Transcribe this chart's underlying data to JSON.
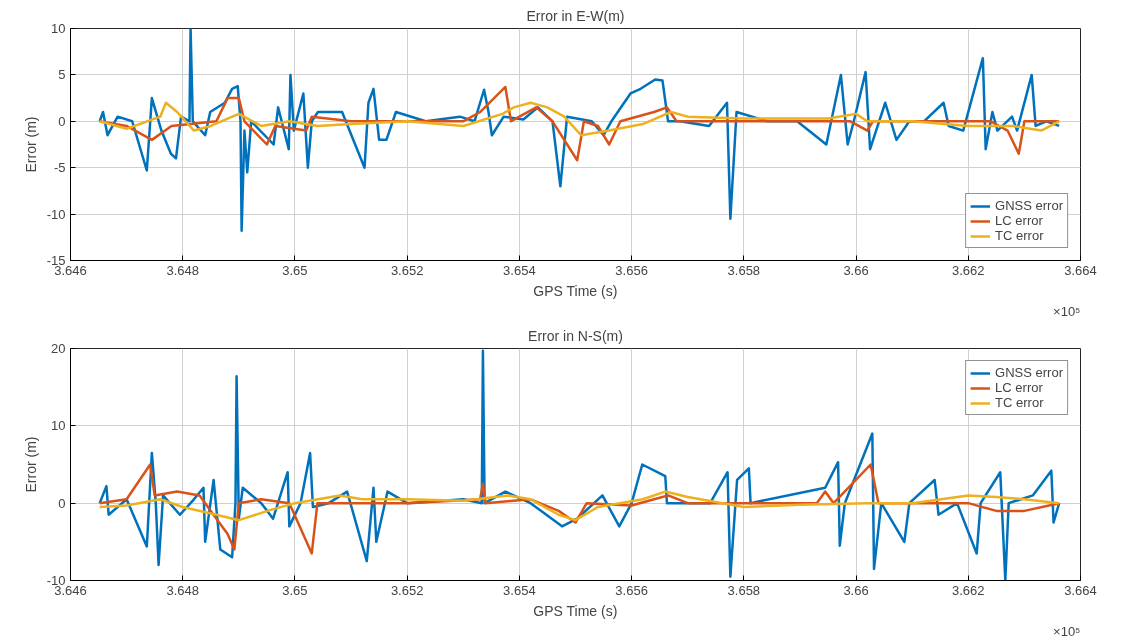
{
  "chart_data": [
    {
      "type": "line",
      "title": "Error in E-W(m)",
      "xlabel": "GPS Time (s)",
      "ylabel": "Error (m)",
      "annotations": [
        "×10⁵"
      ],
      "xlim": [
        3.646,
        3.664
      ],
      "xticks": [
        3.646,
        3.648,
        3.65,
        3.652,
        3.654,
        3.656,
        3.658,
        3.66,
        3.662,
        3.664
      ],
      "ylim": [
        -15,
        10
      ],
      "yticks": [
        -15,
        -10,
        -5,
        0,
        5,
        10
      ],
      "grid": true,
      "legend": "bottom right",
      "series": [
        {
          "name": "GNSS error",
          "color": "#0072bd",
          "x": [
            3.64652,
            3.64658,
            3.64666,
            3.64684,
            3.6471,
            3.64736,
            3.64745,
            3.64762,
            3.64779,
            3.64788,
            3.64797,
            3.64812,
            3.64814,
            3.64818,
            3.6484,
            3.64849,
            3.64875,
            3.64888,
            3.64898,
            3.64903,
            3.64905,
            3.6491,
            3.64915,
            3.64922,
            3.64962,
            3.6497,
            3.64989,
            3.64992,
            3.64998,
            3.65015,
            3.65023,
            3.6503,
            3.65041,
            3.65084,
            3.65124,
            3.65131,
            3.6514,
            3.6515,
            3.65163,
            3.6518,
            3.65233,
            3.65294,
            3.6532,
            3.65337,
            3.65345,
            3.65351,
            3.65372,
            3.65407,
            3.65433,
            3.65459,
            3.65473,
            3.65485,
            3.65529,
            3.6555,
            3.65564,
            3.65598,
            3.65616,
            3.65642,
            3.65655,
            3.65665,
            3.65686,
            3.65738,
            3.6577,
            3.65776,
            3.65787,
            3.65842,
            3.65895,
            3.65947,
            3.65973,
            3.65985,
            3.65996,
            3.66017,
            3.66025,
            3.66052,
            3.66072,
            3.66095,
            3.66121,
            3.66156,
            3.66165,
            3.66191,
            3.66226,
            3.66231,
            3.66243,
            3.66252,
            3.66278,
            3.66287,
            3.66313,
            3.6632,
            3.66339,
            3.66362
          ],
          "values": [
            0,
            1,
            -1.5,
            0.5,
            0,
            -5.3,
            2.5,
            -1,
            -3.5,
            -4,
            0.5,
            0,
            10,
            0,
            -1.5,
            1,
            2,
            3.5,
            3.8,
            0,
            -11.8,
            -1,
            -5.5,
            0,
            -2.5,
            1.5,
            -3,
            5,
            -1,
            3,
            -5,
            0,
            1,
            1,
            -5,
            2,
            3.5,
            -2,
            -2,
            1,
            0,
            0.5,
            0,
            3.4,
            1,
            -1.5,
            0.5,
            0.2,
            1.5,
            0,
            -7,
            0.5,
            0,
            -1.5,
            0,
            3,
            3.5,
            4.5,
            4.4,
            0,
            0,
            -0.5,
            2,
            -10.5,
            1,
            0,
            0,
            -2.5,
            5,
            -2.5,
            0,
            5.3,
            -3,
            2,
            -2,
            0,
            0,
            2,
            -0.5,
            -1,
            6.8,
            -3,
            1,
            -1,
            0.5,
            -1,
            5,
            -0.5,
            0,
            -0.5
          ]
        },
        {
          "name": "LC error",
          "color": "#d95319",
          "x": [
            3.64652,
            3.647,
            3.64745,
            3.6478,
            3.6486,
            3.6488,
            3.649,
            3.6491,
            3.6495,
            3.64965,
            3.6502,
            3.6503,
            3.651,
            3.653,
            3.6533,
            3.65375,
            3.65385,
            3.654,
            3.6543,
            3.65459,
            3.65503,
            3.65515,
            3.6554,
            3.6556,
            3.6558,
            3.6564,
            3.65663,
            3.6568,
            3.657,
            3.6599,
            3.6602,
            3.6603,
            3.661,
            3.6624,
            3.6627,
            3.6629,
            3.663,
            3.66362
          ],
          "values": [
            0,
            -0.5,
            -2,
            -0.5,
            0,
            2.5,
            2.5,
            0,
            -2.5,
            -0.5,
            -1,
            0.5,
            0,
            0,
            1,
            3.7,
            0,
            0.5,
            1.5,
            0,
            -4.2,
            0,
            -0.5,
            -2.5,
            0,
            1,
            1.5,
            0,
            0,
            0,
            -1,
            0,
            0,
            0,
            -1,
            -3.5,
            0,
            0
          ]
        },
        {
          "name": "TC error",
          "color": "#edb120",
          "x": [
            3.64652,
            3.647,
            3.6476,
            3.6477,
            3.6479,
            3.6482,
            3.6485,
            3.649,
            3.6494,
            3.6499,
            3.6504,
            3.651,
            3.652,
            3.653,
            3.6537,
            3.6539,
            3.6542,
            3.6545,
            3.6548,
            3.6551,
            3.6556,
            3.6562,
            3.6567,
            3.657,
            3.658,
            3.6595,
            3.66,
            3.6602,
            3.661,
            3.662,
            3.6628,
            3.6633,
            3.66362
          ],
          "values": [
            0,
            -0.8,
            0.5,
            2,
            1,
            -1,
            -0.5,
            0.8,
            -0.5,
            0,
            -0.5,
            -0.3,
            0,
            -0.5,
            0.8,
            1.5,
            2,
            1.5,
            0.5,
            -1.5,
            -1,
            -0.3,
            1,
            0.5,
            0.3,
            0.3,
            0.8,
            0,
            0,
            -0.5,
            -0.5,
            -1,
            0
          ]
        }
      ]
    },
    {
      "type": "line",
      "title": "Error in N-S(m)",
      "xlabel": "GPS Time (s)",
      "ylabel": "Error (m)",
      "annotations": [
        "×10⁵"
      ],
      "xlim": [
        3.646,
        3.664
      ],
      "xticks": [
        3.646,
        3.648,
        3.65,
        3.652,
        3.654,
        3.656,
        3.658,
        3.66,
        3.662,
        3.664
      ],
      "ylim": [
        -10,
        20
      ],
      "yticks": [
        -10,
        0,
        10,
        20
      ],
      "grid": true,
      "legend": "top right",
      "series": [
        {
          "name": "GNSS error",
          "color": "#0072bd",
          "x": [
            3.64652,
            3.64664,
            3.64668,
            3.647,
            3.64736,
            3.64745,
            3.64752,
            3.64757,
            3.64765,
            3.64795,
            3.6482,
            3.64837,
            3.6484,
            3.64855,
            3.64867,
            3.64888,
            3.64894,
            3.64896,
            3.649,
            3.64907,
            3.6494,
            3.64961,
            3.64987,
            3.6499,
            3.6501,
            3.65027,
            3.65032,
            3.6506,
            3.65093,
            3.65128,
            3.6514,
            3.65145,
            3.65165,
            3.652,
            3.653,
            3.65333,
            3.65335,
            3.65338,
            3.65375,
            3.6542,
            3.65476,
            3.65503,
            3.65548,
            3.65578,
            3.656,
            3.65619,
            3.6566,
            3.65663,
            3.6574,
            3.65771,
            3.65776,
            3.65788,
            3.65809,
            3.65812,
            3.65945,
            3.65968,
            3.65971,
            3.6598,
            3.66029,
            3.66032,
            3.66045,
            3.66086,
            3.66095,
            3.6614,
            3.66147,
            3.6618,
            3.66215,
            3.66222,
            3.66257,
            3.66266,
            3.66272,
            3.66315,
            3.66348,
            3.66352,
            3.66362
          ],
          "values": [
            0,
            2.2,
            -1.5,
            0.5,
            -5.6,
            6.5,
            0,
            -8,
            1,
            -1.5,
            0.5,
            2,
            -5,
            3,
            -6,
            -7,
            0,
            16.4,
            -2,
            2,
            0,
            -2,
            4,
            -3,
            0,
            6.5,
            -0.5,
            0,
            1.5,
            -7.5,
            2,
            -5,
            1.5,
            0,
            0.5,
            0,
            19.7,
            0,
            1.5,
            0,
            -3,
            -2,
            1,
            -3,
            0,
            5,
            3.5,
            0,
            0,
            4,
            -9.5,
            3,
            4.5,
            0,
            2,
            5.3,
            -5.5,
            0,
            9,
            -8.5,
            0,
            -5,
            0,
            3,
            -1.5,
            0,
            -6.5,
            0,
            4,
            -10,
            0,
            1,
            4.2,
            -2.5,
            0
          ]
        },
        {
          "name": "LC error",
          "color": "#d95319",
          "x": [
            3.64652,
            3.647,
            3.64742,
            3.6475,
            3.6479,
            3.6483,
            3.6485,
            3.6488,
            3.64892,
            3.649,
            3.6494,
            3.6499,
            3.6503,
            3.6504,
            3.652,
            3.6533,
            3.65335,
            3.6534,
            3.6542,
            3.6547,
            3.655,
            3.6552,
            3.656,
            3.6564,
            3.65665,
            3.657,
            3.658,
            3.6593,
            3.65945,
            3.6596,
            3.66026,
            3.6604,
            3.662,
            3.6625,
            3.663,
            3.66362
          ],
          "values": [
            0,
            0.5,
            5,
            1,
            1.5,
            1,
            -1,
            -4,
            -6,
            0,
            0.5,
            0,
            -6.5,
            0,
            0,
            0.5,
            2.5,
            0,
            0.5,
            -1,
            -2.5,
            0,
            -0.3,
            0.5,
            1,
            0,
            0,
            0,
            1.5,
            0,
            5,
            0,
            0,
            -1,
            -1,
            0
          ]
        },
        {
          "name": "TC error",
          "color": "#edb120",
          "x": [
            3.64652,
            3.647,
            3.6476,
            3.648,
            3.6486,
            3.649,
            3.6496,
            3.65,
            3.6508,
            3.6512,
            3.652,
            3.653,
            3.6538,
            3.6542,
            3.6547,
            3.655,
            3.6554,
            3.6562,
            3.6566,
            3.657,
            3.658,
            3.659,
            3.6602,
            3.661,
            3.662,
            3.6625,
            3.663,
            3.66362
          ],
          "values": [
            -0.5,
            -0.3,
            0.5,
            -0.5,
            -1.5,
            -2.2,
            -0.8,
            0,
            1,
            0.5,
            0.5,
            0.3,
            1,
            0.5,
            -1.5,
            -2.2,
            -0.5,
            0.5,
            1.5,
            0.8,
            -0.5,
            -0.2,
            0,
            0,
            1,
            0.8,
            0.5,
            0
          ]
        }
      ]
    }
  ]
}
